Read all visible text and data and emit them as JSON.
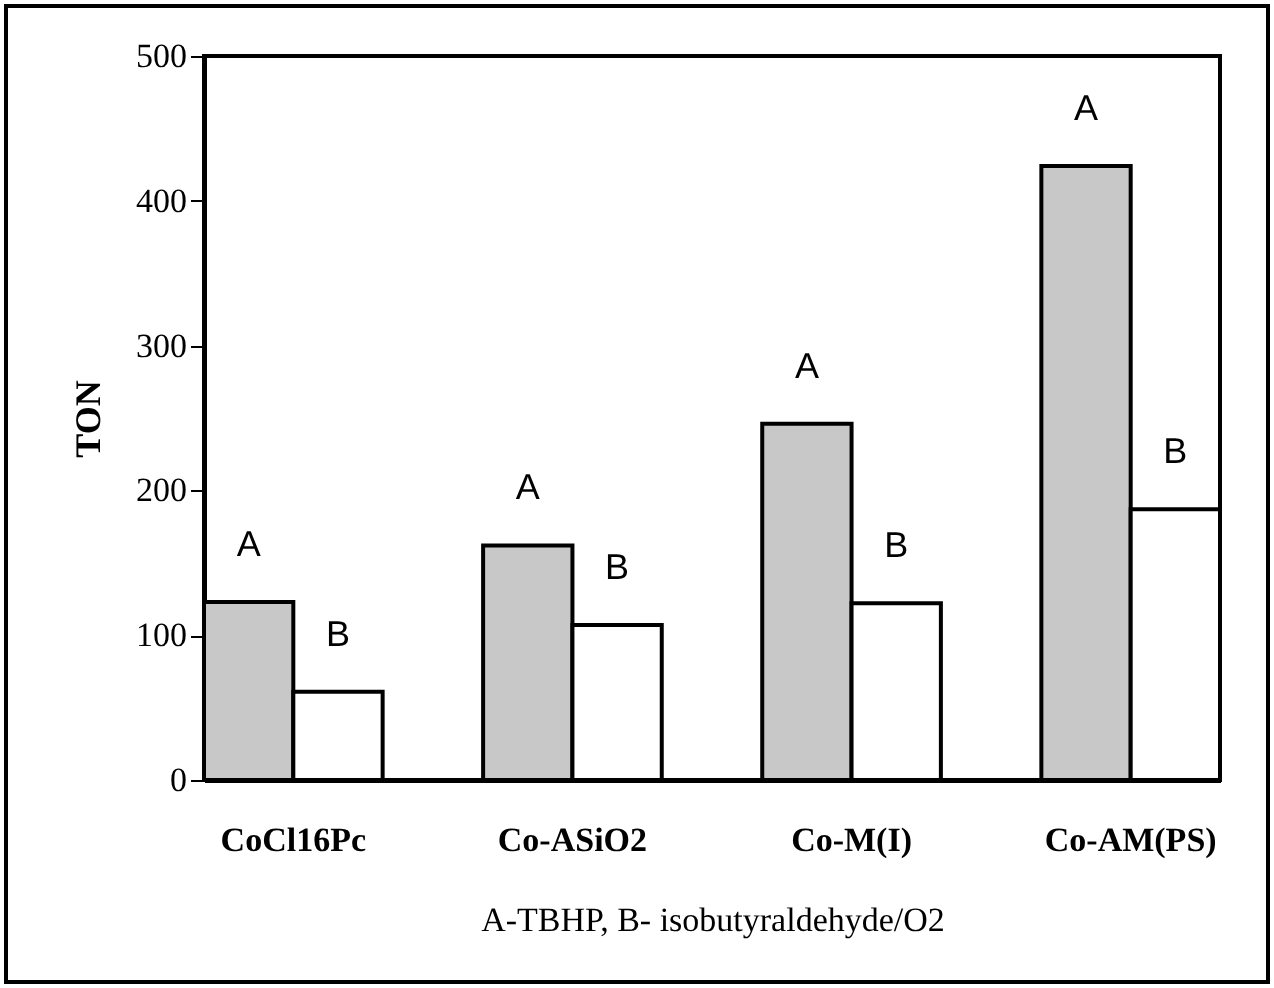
{
  "chart_data": {
    "type": "bar",
    "xlabel": "A-TBHP, B- isobutyraldehyde/O2",
    "ylabel": "TON",
    "categories": [
      "CoCl16Pc",
      "Co-ASiO2",
      "Co-M(I)",
      "Co-AM(PS)"
    ],
    "series": [
      {
        "name": "A",
        "color": "#c8c8c8",
        "values": [
          123,
          162,
          246,
          424
        ]
      },
      {
        "name": "B",
        "color": "#ffffff",
        "values": [
          61,
          107,
          122,
          187
        ]
      }
    ],
    "ylim": [
      0,
      500
    ],
    "yticks": [
      0,
      100,
      200,
      300,
      400,
      500
    ],
    "grid": false,
    "legend": false
  }
}
